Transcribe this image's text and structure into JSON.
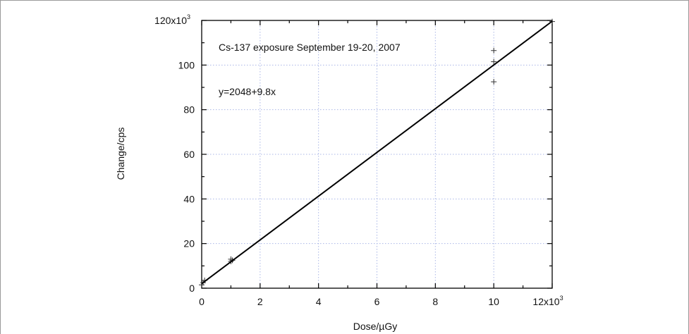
{
  "chart_data": {
    "type": "scatter",
    "annotation_title": "Cs-137 exposure September 19-20, 2007",
    "annotation_fit": "y=2048+9.8x",
    "xlabel": "Dose/µGy",
    "ylabel": "Change/cps",
    "x_tick_labels": [
      "0",
      "2",
      "4",
      "6",
      "8",
      "10",
      "12x10"
    ],
    "x_exponent": "3",
    "y_tick_labels": [
      "0",
      "20",
      "40",
      "60",
      "80",
      "100",
      "120x10"
    ],
    "y_exponent": "3",
    "xlim": [
      0,
      12000
    ],
    "ylim": [
      0,
      120000
    ],
    "x_ticks": [
      0,
      2000,
      4000,
      6000,
      8000,
      10000,
      12000
    ],
    "y_ticks": [
      0,
      20000,
      40000,
      60000,
      80000,
      100000,
      120000
    ],
    "grid": true,
    "series": [
      {
        "marker": "plus",
        "x": [
          0,
          50,
          100,
          1000,
          1000,
          1050,
          10000,
          10000,
          10000,
          12000
        ],
        "y": [
          1500,
          2500,
          3500,
          12000,
          13000,
          12500,
          92500,
          101500,
          106500,
          119500
        ]
      }
    ],
    "fit_line": {
      "intercept": 2048,
      "slope": 9.8,
      "x_range": [
        0,
        12000
      ]
    }
  }
}
